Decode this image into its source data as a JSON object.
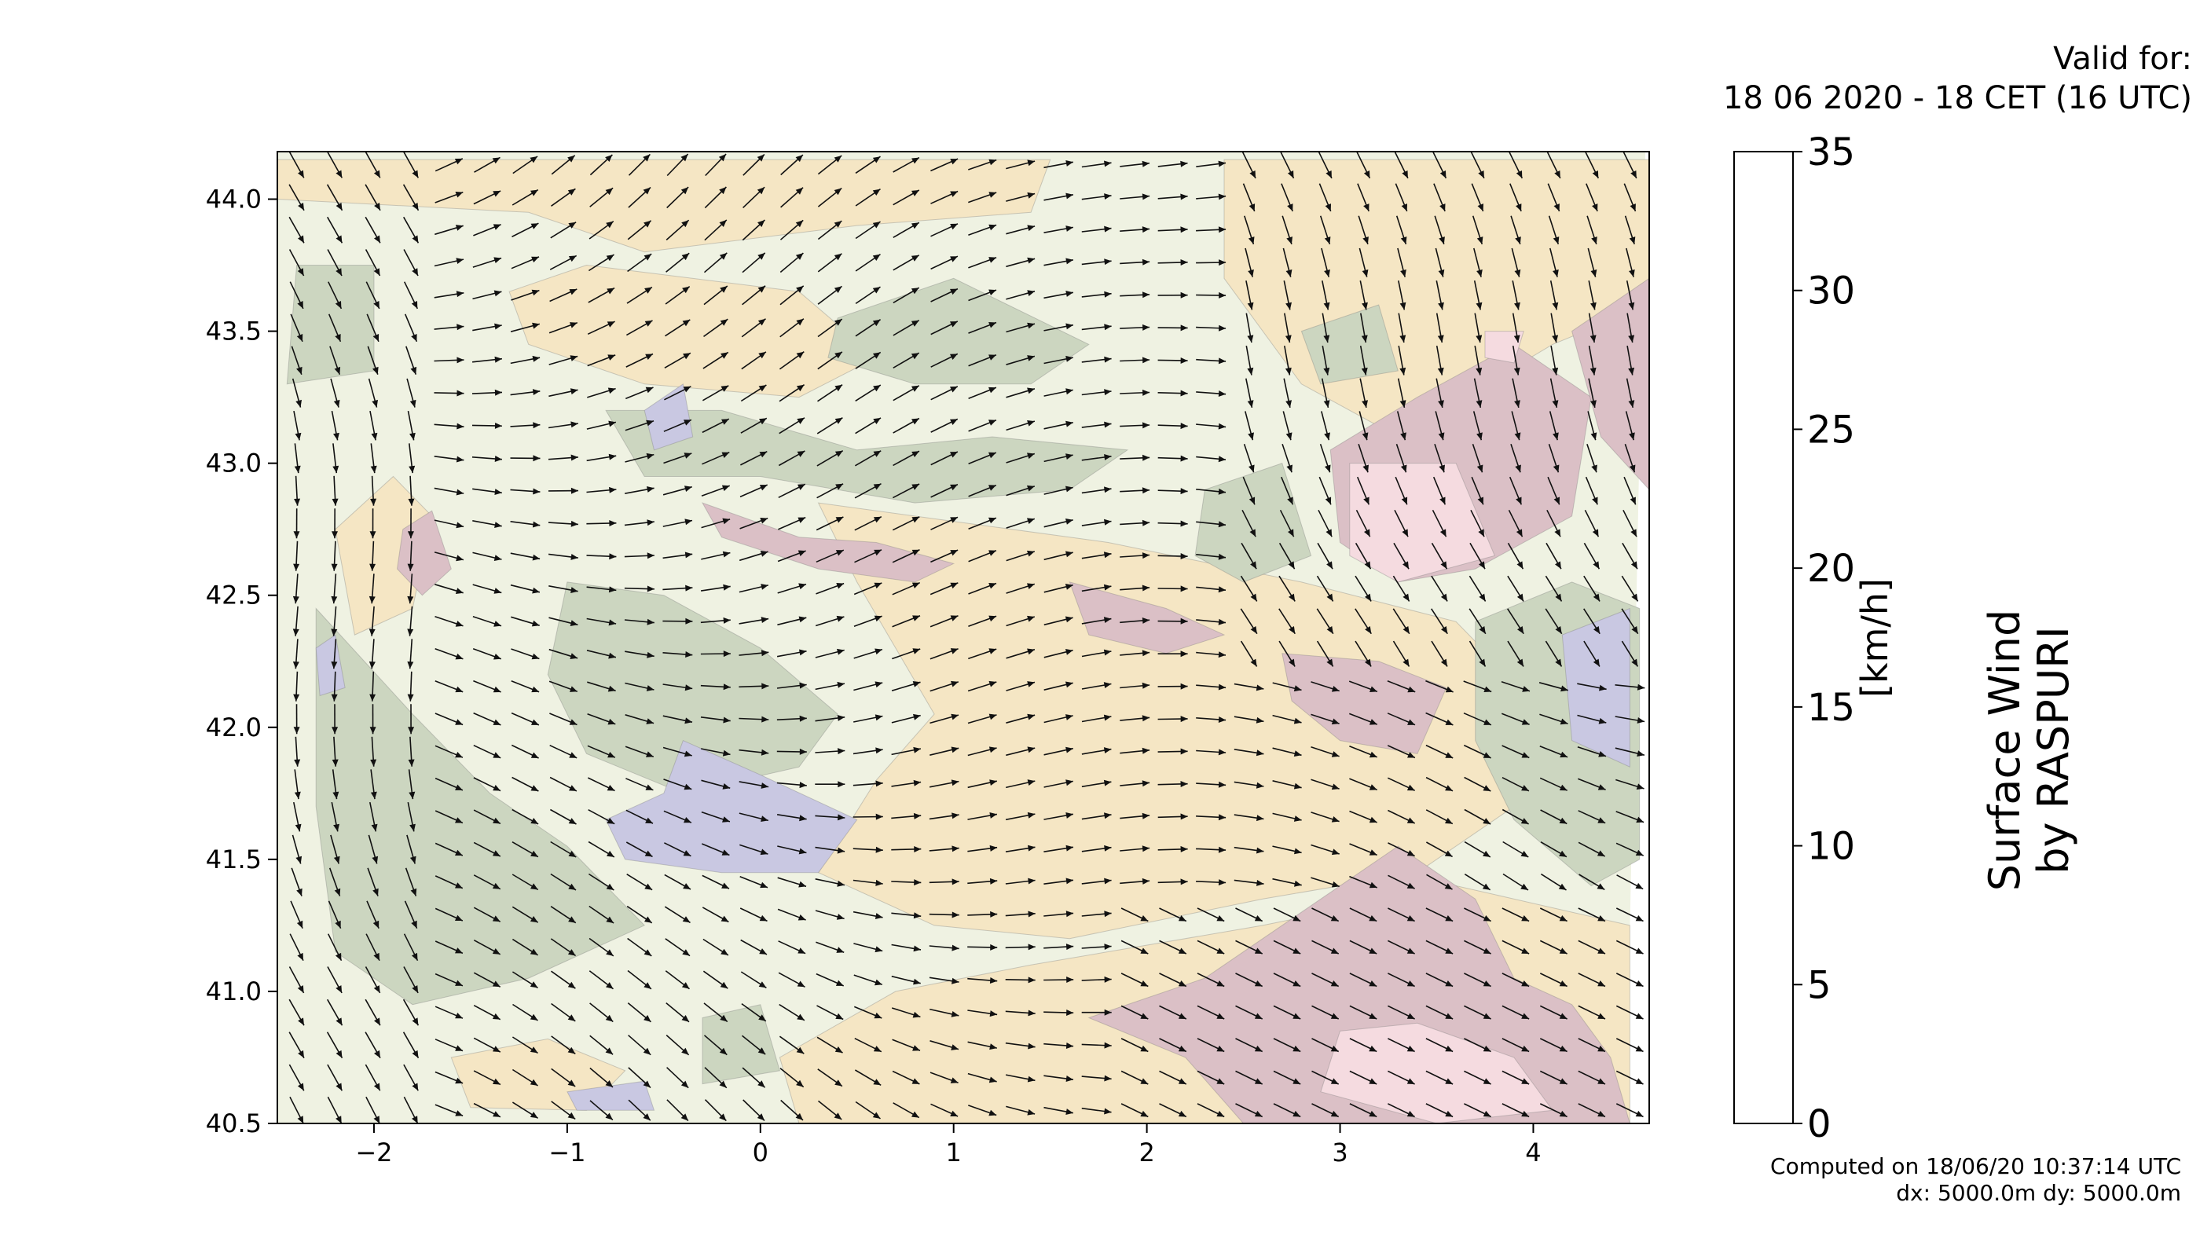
{
  "valid_for": {
    "line1": "Valid for:",
    "line2": "18 06 2020 - 18 CET (16 UTC)"
  },
  "footer": {
    "computed": "Computed on 18/06/20 10:37:14 UTC",
    "grid": "dx: 5000.0m dy: 5000.0m"
  },
  "colorbar": {
    "unit_label": "[km/h]",
    "title_line1": "Surface Wind",
    "title_line2": "by RASPURI",
    "levels": [
      0,
      5,
      10,
      15,
      20,
      25,
      30,
      35
    ],
    "tick_labels": [
      "0",
      "5",
      "10",
      "15",
      "20",
      "25",
      "30",
      "35"
    ],
    "colors": [
      "#c9c8e2",
      "#ccd6c0",
      "#eff2e2",
      "#f5e6c4",
      "#dbc0c6",
      "#f5dbe0",
      "#ebcde8"
    ]
  },
  "chart_data": {
    "type": "heatmap",
    "xlim": [
      -2.5,
      4.6
    ],
    "ylim": [
      40.5,
      44.18
    ],
    "x_ticks": [
      -2,
      -1,
      0,
      1,
      2,
      3,
      4
    ],
    "x_tick_labels": [
      "−2",
      "−1",
      "0",
      "1",
      "2",
      "3",
      "4"
    ],
    "y_ticks": [
      40.5,
      41.0,
      41.5,
      42.0,
      42.5,
      43.0,
      43.5,
      44.0
    ],
    "y_tick_labels": [
      "40.5",
      "41.0",
      "41.5",
      "42.0",
      "42.5",
      "43.0",
      "43.5",
      "44.0"
    ],
    "grid": false,
    "units": "km/h",
    "regions": [
      {
        "level": 15,
        "points": [
          [
            -2.5,
            44.15
          ],
          [
            1.5,
            44.15
          ],
          [
            1.4,
            43.95
          ],
          [
            0.5,
            43.9
          ],
          [
            -0.6,
            43.8
          ],
          [
            -1.2,
            43.95
          ],
          [
            -2.5,
            44.0
          ]
        ]
      },
      {
        "level": 15,
        "points": [
          [
            -1.3,
            43.65
          ],
          [
            -0.9,
            43.75
          ],
          [
            0.2,
            43.65
          ],
          [
            0.6,
            43.4
          ],
          [
            0.2,
            43.25
          ],
          [
            -0.6,
            43.3
          ],
          [
            -1.2,
            43.45
          ]
        ]
      },
      {
        "level": 15,
        "points": [
          [
            2.4,
            44.15
          ],
          [
            4.6,
            44.15
          ],
          [
            4.6,
            43.6
          ],
          [
            4.1,
            43.45
          ],
          [
            3.3,
            43.1
          ],
          [
            2.8,
            43.3
          ],
          [
            2.4,
            43.7
          ]
        ]
      },
      {
        "level": 15,
        "points": [
          [
            0.3,
            42.85
          ],
          [
            1.8,
            42.7
          ],
          [
            2.8,
            42.55
          ],
          [
            3.6,
            42.4
          ],
          [
            4.0,
            42.1
          ],
          [
            3.9,
            41.7
          ],
          [
            3.4,
            41.45
          ],
          [
            2.6,
            41.35
          ],
          [
            1.6,
            41.2
          ],
          [
            0.9,
            41.25
          ],
          [
            0.3,
            41.45
          ],
          [
            0.6,
            41.8
          ],
          [
            0.9,
            42.05
          ],
          [
            0.7,
            42.3
          ],
          [
            0.5,
            42.55
          ]
        ]
      },
      {
        "level": 15,
        "points": [
          [
            1.4,
            41.1
          ],
          [
            2.6,
            41.25
          ],
          [
            3.6,
            41.4
          ],
          [
            4.5,
            41.25
          ],
          [
            4.5,
            40.5
          ],
          [
            0.2,
            40.5
          ],
          [
            0.1,
            40.75
          ],
          [
            0.7,
            41.0
          ]
        ]
      },
      {
        "level": 15,
        "points": [
          [
            -2.2,
            42.75
          ],
          [
            -1.9,
            42.95
          ],
          [
            -1.7,
            42.8
          ],
          [
            -1.8,
            42.45
          ],
          [
            -2.1,
            42.35
          ]
        ]
      },
      {
        "level": 15,
        "points": [
          [
            -1.6,
            40.75
          ],
          [
            -1.1,
            40.82
          ],
          [
            -0.7,
            40.7
          ],
          [
            -0.9,
            40.55
          ],
          [
            -1.5,
            40.56
          ]
        ]
      },
      {
        "level": 20,
        "points": [
          [
            1.7,
            40.9
          ],
          [
            2.3,
            41.05
          ],
          [
            2.8,
            41.3
          ],
          [
            3.3,
            41.55
          ],
          [
            3.7,
            41.35
          ],
          [
            3.9,
            41.05
          ],
          [
            4.2,
            40.95
          ],
          [
            4.4,
            40.75
          ],
          [
            4.5,
            40.5
          ],
          [
            2.5,
            40.5
          ],
          [
            2.2,
            40.75
          ]
        ]
      },
      {
        "level": 20,
        "points": [
          [
            2.95,
            43.05
          ],
          [
            3.4,
            43.25
          ],
          [
            3.9,
            43.45
          ],
          [
            4.3,
            43.25
          ],
          [
            4.2,
            42.8
          ],
          [
            3.7,
            42.6
          ],
          [
            3.3,
            42.55
          ],
          [
            3.0,
            42.7
          ]
        ]
      },
      {
        "level": 20,
        "points": [
          [
            4.2,
            43.5
          ],
          [
            4.6,
            43.7
          ],
          [
            4.6,
            42.9
          ],
          [
            4.35,
            43.1
          ]
        ]
      },
      {
        "level": 20,
        "points": [
          [
            -0.3,
            42.85
          ],
          [
            0.2,
            42.72
          ],
          [
            0.6,
            42.7
          ],
          [
            1.0,
            42.62
          ],
          [
            0.8,
            42.55
          ],
          [
            0.3,
            42.6
          ],
          [
            -0.2,
            42.72
          ]
        ]
      },
      {
        "level": 20,
        "points": [
          [
            1.6,
            42.55
          ],
          [
            2.1,
            42.45
          ],
          [
            2.4,
            42.35
          ],
          [
            2.1,
            42.28
          ],
          [
            1.7,
            42.35
          ]
        ]
      },
      {
        "level": 20,
        "points": [
          [
            2.7,
            42.28
          ],
          [
            3.2,
            42.25
          ],
          [
            3.55,
            42.15
          ],
          [
            3.4,
            41.9
          ],
          [
            3.0,
            41.95
          ],
          [
            2.75,
            42.1
          ]
        ]
      },
      {
        "level": 20,
        "points": [
          [
            -1.85,
            42.75
          ],
          [
            -1.7,
            42.82
          ],
          [
            -1.6,
            42.6
          ],
          [
            -1.75,
            42.5
          ],
          [
            -1.88,
            42.6
          ]
        ]
      },
      {
        "level": 25,
        "points": [
          [
            3.05,
            43.0
          ],
          [
            3.6,
            43.0
          ],
          [
            3.8,
            42.65
          ],
          [
            3.3,
            42.55
          ],
          [
            3.05,
            42.65
          ]
        ]
      },
      {
        "level": 25,
        "points": [
          [
            3.0,
            40.85
          ],
          [
            3.4,
            40.88
          ],
          [
            3.9,
            40.75
          ],
          [
            4.1,
            40.55
          ],
          [
            3.5,
            40.5
          ],
          [
            2.9,
            40.62
          ]
        ]
      },
      {
        "level": 25,
        "points": [
          [
            3.75,
            43.5
          ],
          [
            3.95,
            43.5
          ],
          [
            3.9,
            43.38
          ],
          [
            3.75,
            43.4
          ]
        ]
      },
      {
        "level": 5,
        "points": [
          [
            -2.4,
            43.75
          ],
          [
            -2.0,
            43.75
          ],
          [
            -2.0,
            43.35
          ],
          [
            -2.45,
            43.3
          ]
        ]
      },
      {
        "level": 5,
        "points": [
          [
            -2.3,
            42.45
          ],
          [
            -1.8,
            42.05
          ],
          [
            -1.4,
            41.75
          ],
          [
            -1.0,
            41.55
          ],
          [
            -0.6,
            41.25
          ],
          [
            -1.2,
            41.05
          ],
          [
            -1.8,
            40.95
          ],
          [
            -2.2,
            41.15
          ],
          [
            -2.3,
            41.7
          ]
        ]
      },
      {
        "level": 5,
        "points": [
          [
            -1.0,
            42.55
          ],
          [
            -0.5,
            42.5
          ],
          [
            0.0,
            42.3
          ],
          [
            0.4,
            42.05
          ],
          [
            0.2,
            41.85
          ],
          [
            -0.4,
            41.75
          ],
          [
            -0.9,
            41.9
          ],
          [
            -1.1,
            42.2
          ]
        ]
      },
      {
        "level": 5,
        "points": [
          [
            -0.8,
            43.2
          ],
          [
            -0.2,
            43.2
          ],
          [
            0.5,
            43.05
          ],
          [
            1.2,
            43.1
          ],
          [
            1.9,
            43.05
          ],
          [
            1.6,
            42.9
          ],
          [
            0.8,
            42.85
          ],
          [
            0.0,
            42.95
          ],
          [
            -0.6,
            42.95
          ]
        ]
      },
      {
        "level": 5,
        "points": [
          [
            0.4,
            43.55
          ],
          [
            1.0,
            43.7
          ],
          [
            1.7,
            43.45
          ],
          [
            1.4,
            43.3
          ],
          [
            0.8,
            43.3
          ],
          [
            0.35,
            43.4
          ]
        ]
      },
      {
        "level": 5,
        "points": [
          [
            2.8,
            43.5
          ],
          [
            3.2,
            43.6
          ],
          [
            3.3,
            43.35
          ],
          [
            2.9,
            43.3
          ]
        ]
      },
      {
        "level": 5,
        "points": [
          [
            2.3,
            42.9
          ],
          [
            2.7,
            43.0
          ],
          [
            2.85,
            42.65
          ],
          [
            2.5,
            42.55
          ],
          [
            2.25,
            42.65
          ]
        ]
      },
      {
        "level": 5,
        "points": [
          [
            3.7,
            42.4
          ],
          [
            4.2,
            42.55
          ],
          [
            4.55,
            42.45
          ],
          [
            4.55,
            41.5
          ],
          [
            4.3,
            41.4
          ],
          [
            3.9,
            41.65
          ],
          [
            3.7,
            41.95
          ]
        ]
      },
      {
        "level": 5,
        "points": [
          [
            -0.3,
            40.9
          ],
          [
            0.0,
            40.95
          ],
          [
            0.1,
            40.7
          ],
          [
            -0.3,
            40.65
          ]
        ]
      },
      {
        "level": 0,
        "points": [
          [
            -0.4,
            41.95
          ],
          [
            0.0,
            41.82
          ],
          [
            0.5,
            41.65
          ],
          [
            0.3,
            41.45
          ],
          [
            -0.2,
            41.45
          ],
          [
            -0.7,
            41.5
          ],
          [
            -0.8,
            41.65
          ],
          [
            -0.5,
            41.75
          ]
        ]
      },
      {
        "level": 0,
        "points": [
          [
            4.15,
            42.35
          ],
          [
            4.5,
            42.45
          ],
          [
            4.5,
            41.85
          ],
          [
            4.2,
            41.95
          ]
        ]
      },
      {
        "level": 0,
        "points": [
          [
            -0.6,
            43.2
          ],
          [
            -0.4,
            43.3
          ],
          [
            -0.35,
            43.1
          ],
          [
            -0.55,
            43.05
          ]
        ]
      },
      {
        "level": 0,
        "points": [
          [
            -2.3,
            42.3
          ],
          [
            -2.2,
            42.35
          ],
          [
            -2.15,
            42.15
          ],
          [
            -2.28,
            42.12
          ]
        ]
      },
      {
        "level": 0,
        "points": [
          [
            -1.0,
            40.62
          ],
          [
            -0.6,
            40.66
          ],
          [
            -0.55,
            40.55
          ],
          [
            -0.95,
            40.55
          ]
        ]
      }
    ]
  }
}
